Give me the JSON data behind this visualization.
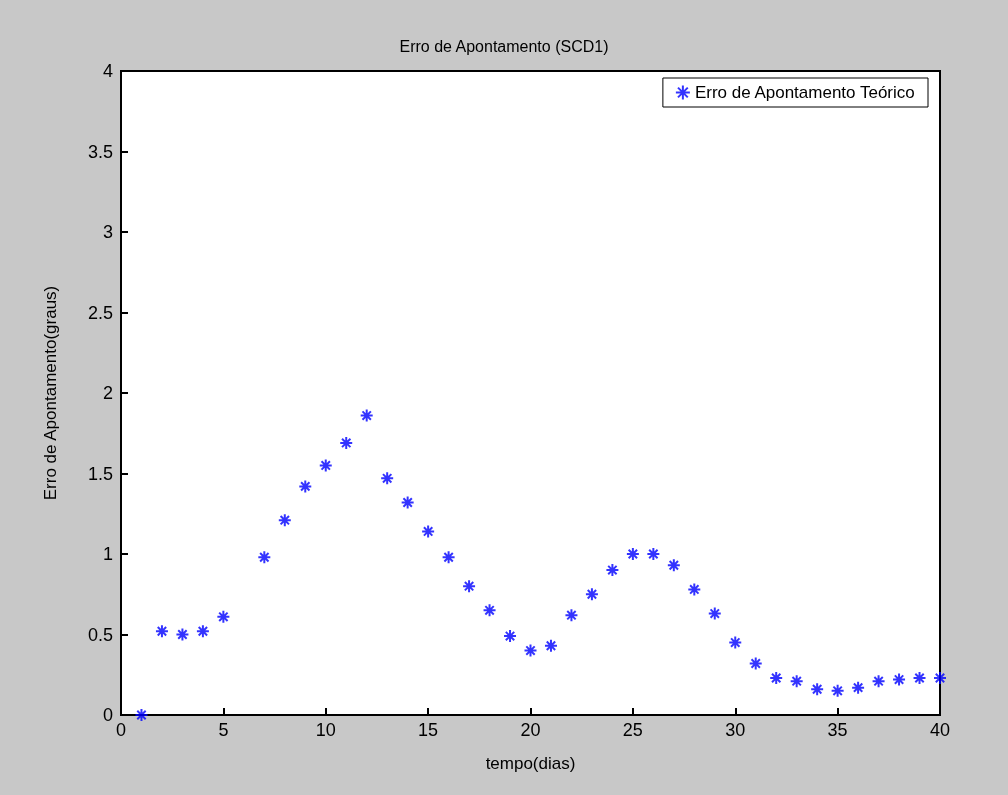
{
  "chart_data": {
    "type": "scatter",
    "title": "Erro de Apontamento (SCD1)",
    "xlabel": "tempo(dias)",
    "ylabel": "Erro de Apontamento(graus)",
    "x": [
      1,
      2,
      3,
      4,
      5,
      6,
      7,
      8,
      9,
      10,
      11,
      12,
      13,
      14,
      15,
      16,
      17,
      18,
      19,
      20,
      21,
      22,
      23,
      24,
      25,
      26,
      27,
      28,
      29,
      30,
      31,
      32,
      33,
      34,
      35,
      36,
      37,
      38,
      39,
      40
    ],
    "series": [
      {
        "name": "Erro de Apontamento Teórico",
        "color": "#0000ff",
        "values": [
          0,
          0.52,
          0.5,
          0.52,
          0.61,
          null,
          0.98,
          1.21,
          1.42,
          1.55,
          1.69,
          1.86,
          1.47,
          1.32,
          1.14,
          0.98,
          0.8,
          0.65,
          0.49,
          0.4,
          0.43,
          0.62,
          0.75,
          0.9,
          1.0,
          1.0,
          0.93,
          0.78,
          0.63,
          0.45,
          0.32,
          0.23,
          0.21,
          0.16,
          0.15,
          0.17,
          0.21,
          0.22,
          0.23,
          0.23
        ]
      }
    ],
    "xlim": [
      0,
      40
    ],
    "xticks": [
      0,
      5,
      10,
      15,
      20,
      25,
      30,
      35,
      40
    ],
    "ylim": [
      0,
      4
    ],
    "yticks": [
      0,
      0.5,
      1,
      1.5,
      2,
      2.5,
      3,
      3.5,
      4
    ],
    "grid": false,
    "legend": "top right",
    "marker": "cross"
  }
}
